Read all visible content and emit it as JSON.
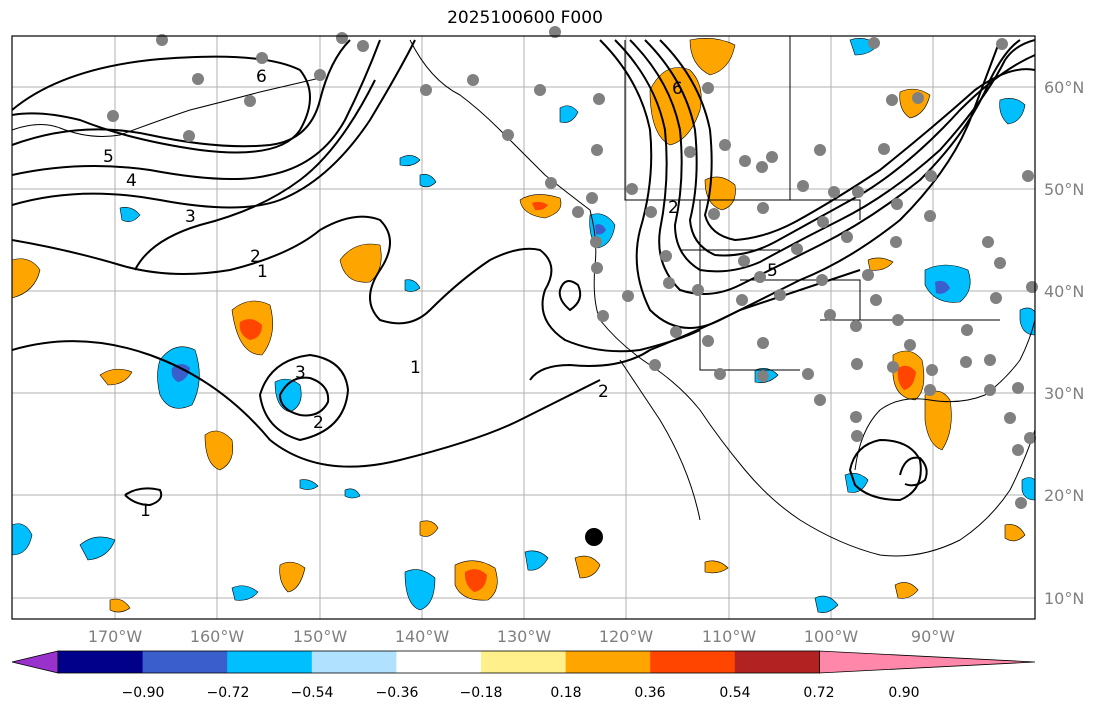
{
  "title": "2025100600 F000",
  "map": {
    "lat_ticks": [
      "60°N",
      "50°N",
      "40°N",
      "30°N",
      "20°N",
      "10°N"
    ],
    "lon_ticks": [
      "170°W",
      "160°W",
      "150°W",
      "140°W",
      "130°W",
      "120°W",
      "110°W",
      "100°W",
      "90°W"
    ]
  },
  "colorbar": {
    "tick_labels": [
      "−0.90",
      "−0.72",
      "−0.54",
      "−0.36",
      "−0.18",
      "0.18",
      "0.36",
      "0.54",
      "0.72",
      "0.90"
    ],
    "colors": [
      "#9932cc",
      "#00008b",
      "#3a5fcd",
      "#00bfff",
      "#b0e2ff",
      "#ffffff",
      "#fff08c",
      "#ffa500",
      "#ff4500",
      "#b22222",
      "#ff88aa"
    ]
  },
  "contour_labels": [
    "6",
    "5",
    "4",
    "3",
    "2",
    "1",
    "3",
    "2",
    "1",
    "1",
    "2",
    "6",
    "2",
    "5"
  ]
}
